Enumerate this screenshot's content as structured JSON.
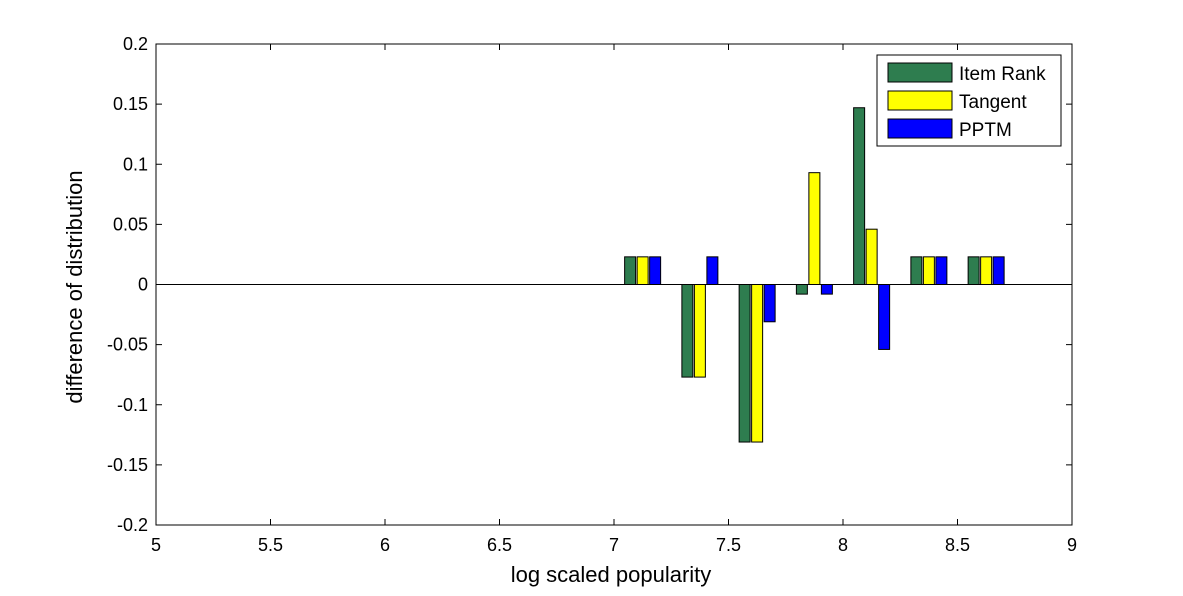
{
  "chart_data": {
    "type": "bar",
    "title": "",
    "xlabel": "log scaled popularity",
    "ylabel": "difference of distribution",
    "xlim": [
      5,
      9
    ],
    "ylim": [
      -0.2,
      0.2
    ],
    "grid": false,
    "legend_position": "top-right",
    "x_ticks": [
      "5",
      "5.5",
      "6",
      "6.5",
      "7",
      "7.5",
      "8",
      "8.5",
      "9"
    ],
    "y_ticks": [
      "-0.2",
      "-0.15",
      "-0.1",
      "-0.05",
      "0",
      "0.05",
      "0.1",
      "0.15",
      "0.2"
    ],
    "x_tick_values": [
      5,
      5.5,
      6,
      6.5,
      7,
      7.5,
      8,
      8.5,
      9
    ],
    "y_tick_values": [
      -0.2,
      -0.15,
      -0.1,
      -0.05,
      0,
      0.05,
      0.1,
      0.15,
      0.2
    ],
    "x": [
      7.125,
      7.375,
      7.625,
      7.875,
      8.125,
      8.375,
      8.625
    ],
    "bar_group_spacing": 0.25,
    "series": [
      {
        "name": "Item Rank",
        "color": "#2e7d4f",
        "values": [
          0.023,
          -0.077,
          -0.131,
          -0.008,
          0.147,
          0.023,
          0.023
        ]
      },
      {
        "name": "Tangent",
        "color": "#ffff00",
        "values": [
          0.023,
          -0.077,
          -0.131,
          0.093,
          0.046,
          0.023,
          0.023
        ]
      },
      {
        "name": "PPTM",
        "color": "#0000ff",
        "values": [
          0.023,
          0.023,
          -0.031,
          -0.008,
          -0.054,
          0.023,
          0.023
        ]
      }
    ]
  }
}
